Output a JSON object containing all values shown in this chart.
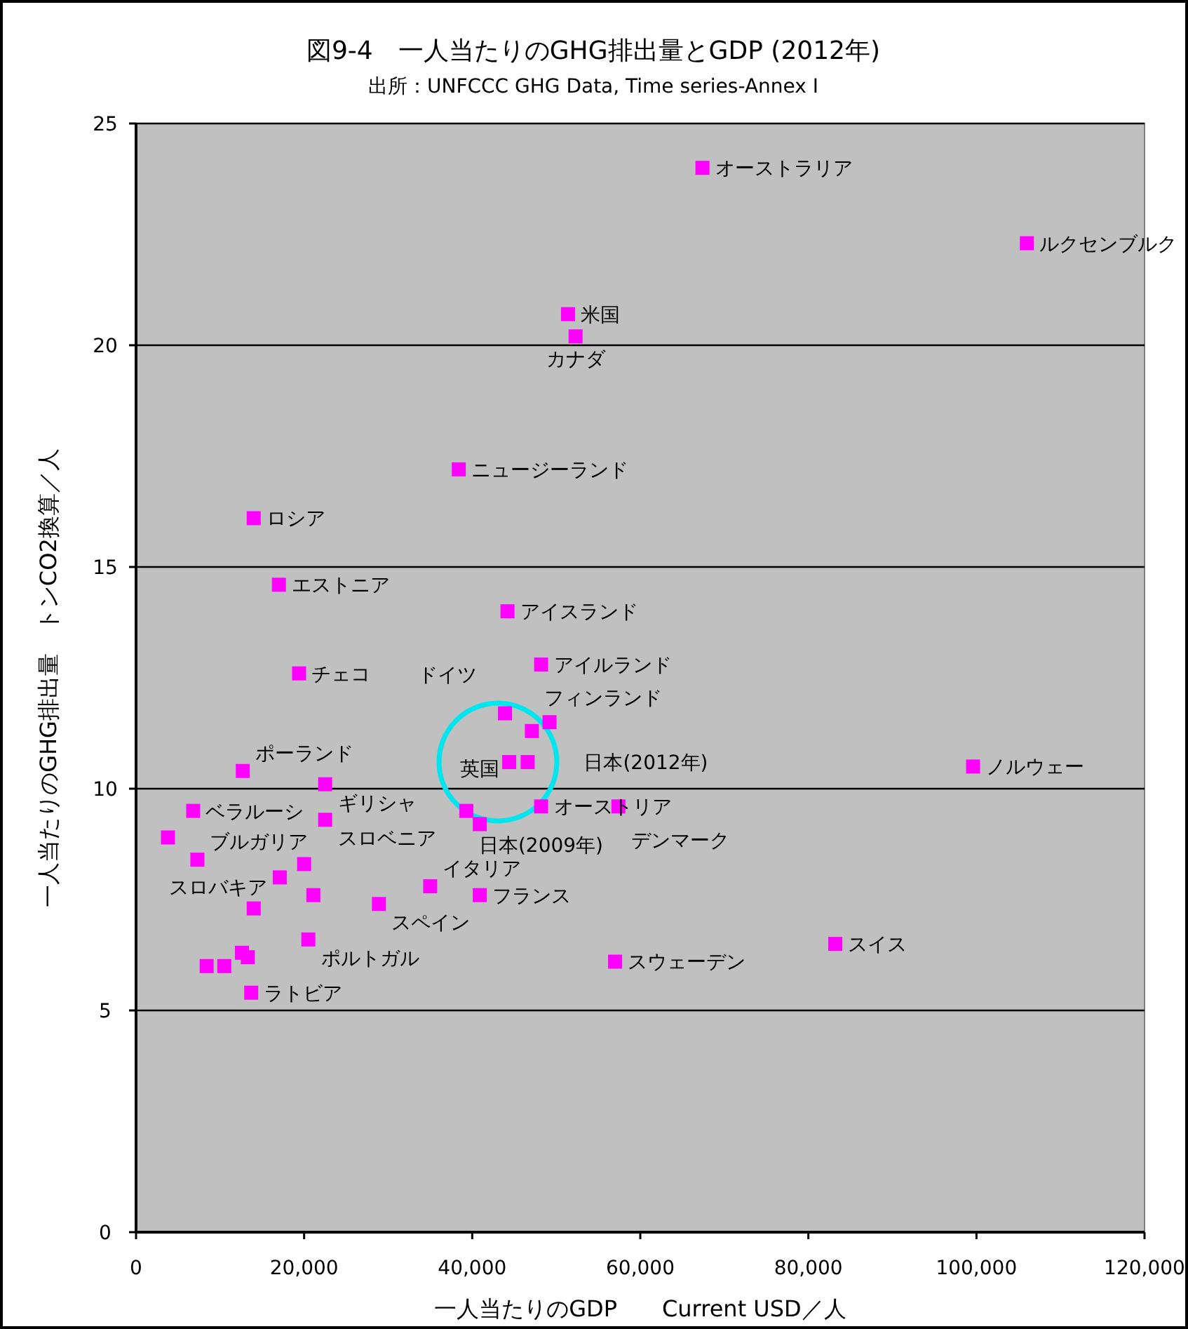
{
  "chart_data": {
    "type": "scatter",
    "title": "図9-4　一人当たりのGHG排出量とGDP (2012年)",
    "subtitle": "出所：UNFCCC GHG Data, Time series-Annex I",
    "xlabel": "一人当たりのGDP　　Current USD／人",
    "ylabel": "一人当たりのGHG排出量　トンCO2換算／人",
    "x": [
      67400,
      106000,
      51400,
      52300,
      38400,
      14000,
      17000,
      44200,
      48200,
      19400,
      43900,
      47100,
      49200,
      12700,
      22500,
      6800,
      22500,
      3800,
      7300,
      17100,
      20000,
      21100,
      14000,
      28900,
      35000,
      40900,
      20500,
      12600,
      13300,
      10500,
      8400,
      13700,
      57000,
      39300,
      40900,
      44400,
      46600,
      48200,
      57400,
      99600,
      83200
    ],
    "values": [
      24.0,
      22.3,
      20.7,
      20.2,
      17.2,
      16.1,
      14.6,
      14.0,
      12.8,
      12.6,
      11.7,
      11.3,
      11.5,
      10.4,
      10.1,
      9.5,
      9.3,
      8.9,
      8.4,
      8.0,
      8.3,
      7.6,
      7.3,
      7.4,
      7.8,
      7.6,
      6.6,
      6.3,
      6.2,
      6.0,
      6.0,
      5.4,
      6.1,
      9.5,
      9.2,
      10.6,
      10.6,
      9.6,
      9.6,
      10.5,
      6.5
    ],
    "color": "#ff00ff",
    "marker": "square",
    "xlim": [
      0,
      120000
    ],
    "ylim": [
      0,
      25
    ],
    "xticks": [
      0,
      {
        "value": 20000,
        "label": "20,000"
      },
      {
        "value": 40000,
        "label": "40,000"
      },
      {
        "value": 60000,
        "label": "60,000"
      },
      {
        "value": 80000,
        "label": "80,000"
      },
      {
        "value": 100000,
        "label": "100,000"
      },
      {
        "value": 120000,
        "label": "120,000"
      }
    ],
    "yticks": [
      0,
      5,
      10,
      15,
      20,
      25
    ],
    "grid": "y",
    "annotations": [
      {
        "text": "オーストラリア",
        "x": 67400,
        "y": 24.0
      },
      {
        "text": "ルクセンブルク",
        "x": 106000,
        "y": 22.3
      },
      {
        "text": "米国",
        "x": 51400,
        "y": 20.7
      },
      {
        "text": "カナダ",
        "x": 52300,
        "y": 20.2
      },
      {
        "text": "ニュージーランド",
        "x": 38400,
        "y": 17.2
      },
      {
        "text": "ロシア",
        "x": 14000,
        "y": 16.1
      },
      {
        "text": "エストニア",
        "x": 17000,
        "y": 14.6
      },
      {
        "text": "アイスランド",
        "x": 44200,
        "y": 14.0
      },
      {
        "text": "アイルランド",
        "x": 48200,
        "y": 12.8
      },
      {
        "text": "チェコ",
        "x": 19400,
        "y": 12.6
      },
      {
        "text": "ドイツ",
        "x": 43900,
        "y": 11.7
      },
      {
        "text": "フィンランド",
        "x": 47100,
        "y": 11.3
      },
      {
        "text": "ポーランド",
        "x": 12700,
        "y": 10.4
      },
      {
        "text": "ギリシャ",
        "x": 22500,
        "y": 10.1
      },
      {
        "text": "ベラルーシ",
        "x": 6800,
        "y": 9.5
      },
      {
        "text": "スロベニア",
        "x": 22500,
        "y": 9.3
      },
      {
        "text": "ブルガリア",
        "x": 7300,
        "y": 8.4
      },
      {
        "text": "スロバキア",
        "x": 17100,
        "y": 8.0
      },
      {
        "text": "スペイン",
        "x": 28900,
        "y": 7.4
      },
      {
        "text": "イタリア",
        "x": 35000,
        "y": 7.8
      },
      {
        "text": "フランス",
        "x": 40900,
        "y": 7.6
      },
      {
        "text": "ポルトガル",
        "x": 20500,
        "y": 6.6
      },
      {
        "text": "ラトビア",
        "x": 13700,
        "y": 5.4
      },
      {
        "text": "スウェーデン",
        "x": 57000,
        "y": 6.1
      },
      {
        "text": "日本(2009年)",
        "x": 39300,
        "y": 9.5
      },
      {
        "text": "英国",
        "x": 40900,
        "y": 9.2
      },
      {
        "text": "日本(2012年)",
        "x": 46600,
        "y": 10.6
      },
      {
        "text": "オーストリア",
        "x": 48200,
        "y": 9.6
      },
      {
        "text": "デンマーク",
        "x": 57400,
        "y": 9.6
      },
      {
        "text": "ノルウェー",
        "x": 99600,
        "y": 10.5
      },
      {
        "text": "スイス",
        "x": 83200,
        "y": 6.5
      }
    ]
  }
}
